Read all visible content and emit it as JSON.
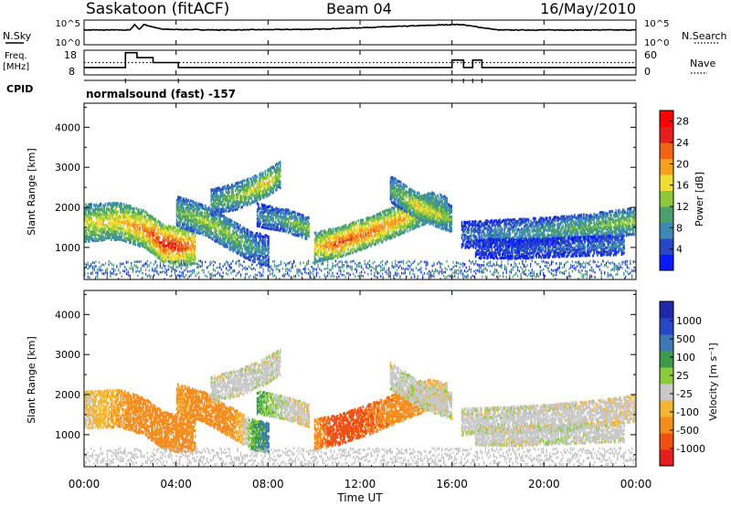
{
  "header": {
    "station": "Saskatoon (fitACF)",
    "beam": "Beam 04",
    "date": "16/May/2010"
  },
  "labels": {
    "nsky": "N.Sky",
    "freq": "Freq.",
    "mhz": "[MHz]",
    "cpid": "CPID",
    "nsearch": "N.Search",
    "nave": "Nave",
    "program": "normalsound (fast) -157",
    "slant_range": "Slant Range [km]",
    "xlabel": "Time UT",
    "power_label": "Power [dB]",
    "velocity_label": "Velocity [m s⁻¹]"
  },
  "chart_data": [
    {
      "type": "line",
      "id": "noise-panel",
      "left_label": "N.Sky",
      "right_label": "N.Search",
      "yticks_left": [
        "10^5",
        "10^0"
      ],
      "yticks_right": [
        "10^5",
        "10^0"
      ],
      "x": [
        0,
        2,
        2.2,
        2.4,
        2.6,
        3.4,
        6,
        10,
        16,
        16.4,
        18,
        24
      ],
      "series": [
        {
          "values": [
            0.55,
            0.55,
            0.95,
            0.6,
            0.95,
            0.6,
            0.55,
            0.6,
            0.95,
            0.95,
            0.55,
            0.55
          ]
        }
      ]
    },
    {
      "type": "line",
      "id": "freq-panel",
      "left_label": "Freq. [MHz]",
      "right_label": "Nave",
      "yticks_left": [
        "18",
        "8"
      ],
      "yticks_right": [
        "60",
        "0"
      ],
      "series": [
        {
          "name": "Freq",
          "x": [
            0,
            1.8,
            1.8,
            2.3,
            2.3,
            3.0,
            3.0,
            4.1,
            4.1,
            16.0,
            16.0,
            16.5,
            16.5,
            16.9,
            16.9,
            17.3,
            17.3,
            24
          ],
          "values": [
            11,
            11,
            17,
            17,
            15,
            15,
            13,
            13,
            11,
            11,
            14,
            14,
            11,
            11,
            14,
            14,
            11,
            11
          ]
        },
        {
          "name": "Nave",
          "x": [
            0,
            24
          ],
          "values": [
            13,
            13
          ]
        }
      ]
    },
    {
      "type": "heatmap",
      "id": "power",
      "title": "Power",
      "ylabel": "Slant Range [km]",
      "ylim": [
        200,
        4600
      ],
      "yticks": [
        1000,
        2000,
        3000,
        4000
      ],
      "xlim": [
        0,
        24
      ],
      "xticks": [
        "00:00",
        "04:00",
        "08:00",
        "12:00",
        "16:00",
        "20:00",
        "00:00"
      ],
      "colorbar": {
        "label": "Power [dB]",
        "ticks": [
          4,
          8,
          12,
          16,
          20,
          24,
          28
        ],
        "range": [
          0,
          30
        ]
      },
      "echo_bands": [
        {
          "t": [
            0,
            1.5,
            2.6,
            3.4,
            4.2,
            4.8
          ],
          "r": [
            1600,
            1650,
            1450,
            1100,
            1000,
            1050
          ],
          "w": 450,
          "p": [
            16,
            18,
            22,
            26,
            25,
            20
          ]
        },
        {
          "t": [
            4,
            5.3,
            6.5,
            7.3,
            8.0
          ],
          "r": [
            1900,
            1650,
            1250,
            1000,
            900
          ],
          "w": 380,
          "p": [
            12,
            15,
            13,
            10,
            8
          ]
        },
        {
          "t": [
            5.5,
            6.8,
            7.8,
            8.5
          ],
          "r": [
            2100,
            2300,
            2550,
            2800
          ],
          "w": 320,
          "p": [
            10,
            14,
            18,
            14
          ]
        },
        {
          "t": [
            7.5,
            8.8,
            9.8
          ],
          "r": [
            1800,
            1650,
            1450
          ],
          "w": 280,
          "p": [
            8,
            12,
            14
          ]
        },
        {
          "t": [
            10.0,
            11.0,
            12.5,
            13.8,
            15.0,
            15.8
          ],
          "r": [
            1000,
            1100,
            1400,
            1700,
            2000,
            1900
          ],
          "w": 380,
          "p": [
            18,
            24,
            22,
            20,
            16,
            12
          ]
        },
        {
          "t": [
            13.3,
            14.4,
            15.4,
            16.0
          ],
          "r": [
            2450,
            2050,
            1800,
            1700
          ],
          "w": 300,
          "p": [
            10,
            18,
            16,
            12
          ]
        },
        {
          "t": [
            16.4,
            18.0,
            20.0,
            22.0,
            24.0
          ],
          "r": [
            1300,
            1350,
            1400,
            1500,
            1650
          ],
          "w": 320,
          "p": [
            6,
            8,
            10,
            12,
            14
          ]
        },
        {
          "t": [
            17.0,
            19.0,
            21.0,
            23.5
          ],
          "r": [
            950,
            950,
            1000,
            1050
          ],
          "w": 220,
          "p": [
            4,
            5,
            6,
            8
          ]
        }
      ]
    },
    {
      "type": "heatmap",
      "id": "velocity",
      "title": "Velocity",
      "ylabel": "Slant Range [km]",
      "ylim": [
        200,
        4600
      ],
      "yticks": [
        1000,
        2000,
        3000,
        4000
      ],
      "xlim": [
        0,
        24
      ],
      "xticks": [
        "00:00",
        "04:00",
        "08:00",
        "12:00",
        "16:00",
        "20:00",
        "00:00"
      ],
      "colorbar": {
        "label": "Velocity [m s⁻¹]",
        "ticks": [
          "1000",
          "500",
          "100",
          "25",
          "-25",
          "-100",
          "-500",
          "-1000"
        ]
      },
      "echo_bands": [
        {
          "t": [
            0,
            1.5,
            2.6,
            3.4,
            4.2,
            4.8
          ],
          "r": [
            1600,
            1650,
            1450,
            1100,
            1000,
            1050
          ],
          "w": 450,
          "v": [
            -25,
            -100,
            -150,
            -200,
            -150,
            -120
          ]
        },
        {
          "t": [
            4,
            5.3,
            6.5,
            7.3,
            8.0
          ],
          "r": [
            1900,
            1650,
            1250,
            1000,
            900
          ],
          "w": 380,
          "v": [
            -100,
            -150,
            -120,
            60,
            120
          ]
        },
        {
          "t": [
            5.5,
            6.8,
            7.8,
            8.5
          ],
          "r": [
            2100,
            2300,
            2550,
            2800
          ],
          "w": 320,
          "v": [
            0,
            0,
            5,
            0
          ]
        },
        {
          "t": [
            7.5,
            8.8,
            9.8
          ],
          "r": [
            1800,
            1650,
            1450
          ],
          "w": 280,
          "v": [
            80,
            0,
            -20
          ]
        },
        {
          "t": [
            10.0,
            11.0,
            12.5,
            13.8,
            15.0,
            15.8
          ],
          "r": [
            1000,
            1100,
            1400,
            1700,
            2000,
            1900
          ],
          "w": 380,
          "v": [
            -200,
            -300,
            -250,
            -200,
            -60,
            -10
          ]
        },
        {
          "t": [
            13.3,
            14.4,
            15.4,
            16.0
          ],
          "r": [
            2450,
            2050,
            1800,
            1700
          ],
          "w": 300,
          "v": [
            0,
            10,
            0,
            0
          ]
        },
        {
          "t": [
            16.4,
            18.0,
            20.0,
            22.0,
            24.0
          ],
          "r": [
            1300,
            1350,
            1400,
            1500,
            1650
          ],
          "w": 320,
          "v": [
            0,
            5,
            0,
            -5,
            -20
          ]
        },
        {
          "t": [
            17.0,
            19.0,
            21.0,
            23.5
          ],
          "r": [
            950,
            950,
            1000,
            1050
          ],
          "w": 220,
          "v": [
            0,
            0,
            10,
            0
          ]
        }
      ]
    }
  ],
  "colors": {
    "power_scale": [
      "#0a1aff",
      "#2846c8",
      "#3c8ab4",
      "#4aa06a",
      "#8cc83c",
      "#f0dc32",
      "#f5a01e",
      "#f06414",
      "#e61e1e",
      "#ff0000"
    ],
    "velocity_scale": [
      "#e61e1e",
      "#f05014",
      "#f58c1e",
      "#f5b432",
      "#c8c8c8",
      "#8ccc3c",
      "#3c9a4a",
      "#3c78b4",
      "#2846c8",
      "#1e28aa"
    ],
    "ground_scatter": "#bebebe"
  }
}
